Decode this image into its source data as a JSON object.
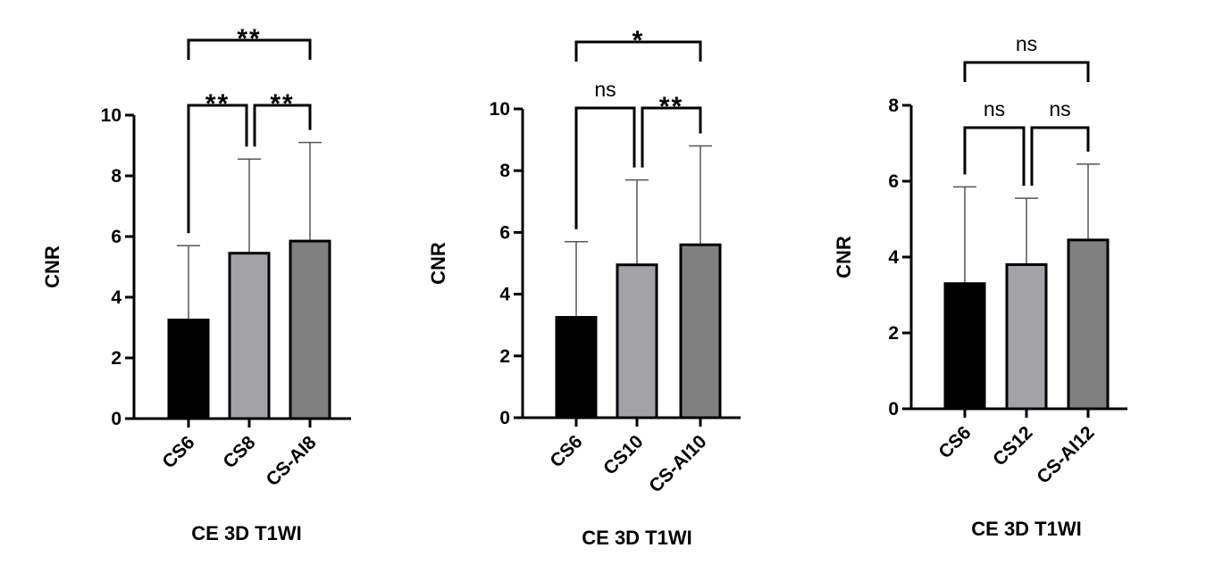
{
  "chart_data": [
    {
      "type": "bar",
      "title": "",
      "xlabel": "CE 3D T1WI",
      "ylabel": "CNR",
      "ylim": [
        0,
        10
      ],
      "yticks": [
        0,
        2,
        4,
        6,
        8,
        10
      ],
      "categories": [
        "CS6",
        "CS8",
        "CS-AI8"
      ],
      "values": [
        3.25,
        5.45,
        5.85
      ],
      "error_upper": [
        5.7,
        8.55,
        9.1
      ],
      "colors": [
        "#000000",
        "#a3a3a7",
        "#808080"
      ],
      "significance": [
        {
          "from": 0,
          "to": 1,
          "label": "**"
        },
        {
          "from": 1,
          "to": 2,
          "label": "**"
        },
        {
          "from": 0,
          "to": 2,
          "label": "**"
        }
      ],
      "grid": false
    },
    {
      "type": "bar",
      "title": "",
      "xlabel": "CE 3D T1WI",
      "ylabel": "CNR",
      "ylim": [
        0,
        10
      ],
      "yticks": [
        0,
        2,
        4,
        6,
        8,
        10
      ],
      "categories": [
        "CS6",
        "CS10",
        "CS-AI10"
      ],
      "values": [
        3.25,
        4.95,
        5.6
      ],
      "error_upper": [
        5.7,
        7.7,
        8.8
      ],
      "colors": [
        "#000000",
        "#a3a3a7",
        "#808080"
      ],
      "significance": [
        {
          "from": 0,
          "to": 1,
          "label": "ns"
        },
        {
          "from": 1,
          "to": 2,
          "label": "**"
        },
        {
          "from": 0,
          "to": 2,
          "label": "*"
        }
      ],
      "grid": false
    },
    {
      "type": "bar",
      "title": "",
      "xlabel": "CE 3D T1WI",
      "ylabel": "CNR",
      "ylim": [
        0,
        8
      ],
      "yticks": [
        0,
        2,
        4,
        6,
        8
      ],
      "categories": [
        "CS6",
        "CS12",
        "CS-AI12"
      ],
      "values": [
        3.3,
        3.8,
        4.45
      ],
      "error_upper": [
        5.85,
        5.55,
        6.45
      ],
      "colors": [
        "#000000",
        "#a3a3a7",
        "#808080"
      ],
      "significance": [
        {
          "from": 0,
          "to": 1,
          "label": "ns"
        },
        {
          "from": 1,
          "to": 2,
          "label": "ns"
        },
        {
          "from": 0,
          "to": 2,
          "label": "ns"
        }
      ],
      "grid": false
    }
  ]
}
